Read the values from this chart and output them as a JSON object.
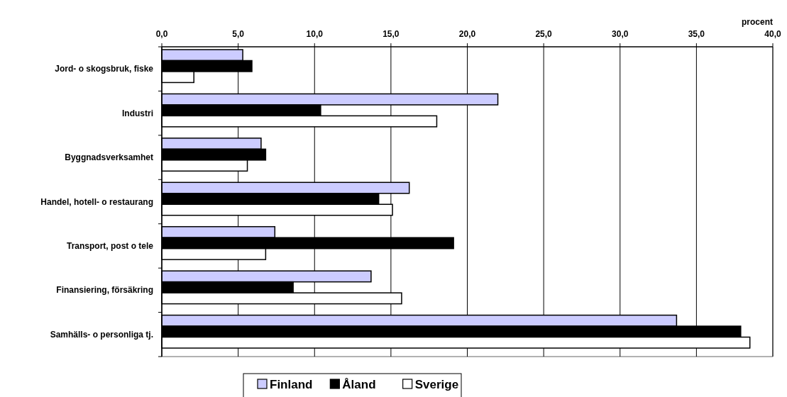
{
  "chart_data": {
    "type": "bar",
    "orientation": "horizontal",
    "xlabel": "procent",
    "categories": [
      "Jord- o skogsbruk, fiske",
      "Industri",
      "Byggnadsverksamhet",
      "Handel, hotell- o restaurang",
      "Transport, post o tele",
      "Finansiering, försäkring",
      "Samhälls- o personliga tj."
    ],
    "series": [
      {
        "name": "Finland",
        "color": "#ccccff",
        "values": [
          5.3,
          22.0,
          6.5,
          16.2,
          7.4,
          13.7,
          33.7
        ]
      },
      {
        "name": "Åland",
        "color": "#000000",
        "values": [
          5.9,
          10.4,
          6.8,
          14.2,
          19.1,
          8.6,
          37.9
        ]
      },
      {
        "name": "Sverige",
        "color": "#ffffff",
        "values": [
          2.1,
          18.0,
          5.6,
          15.1,
          6.8,
          15.7,
          38.5
        ]
      }
    ],
    "xlim": [
      0,
      40
    ],
    "xticks": [
      {
        "value": 0,
        "label": "0,0"
      },
      {
        "value": 5,
        "label": "5,0"
      },
      {
        "value": 10,
        "label": "10,0"
      },
      {
        "value": 15,
        "label": "15,0"
      },
      {
        "value": 20,
        "label": "20,0"
      },
      {
        "value": 25,
        "label": "25,0"
      },
      {
        "value": 30,
        "label": "30,0"
      },
      {
        "value": 35,
        "label": "35,0"
      },
      {
        "value": 40,
        "label": "40,0"
      }
    ],
    "grid": "x",
    "legend": "bottom"
  }
}
